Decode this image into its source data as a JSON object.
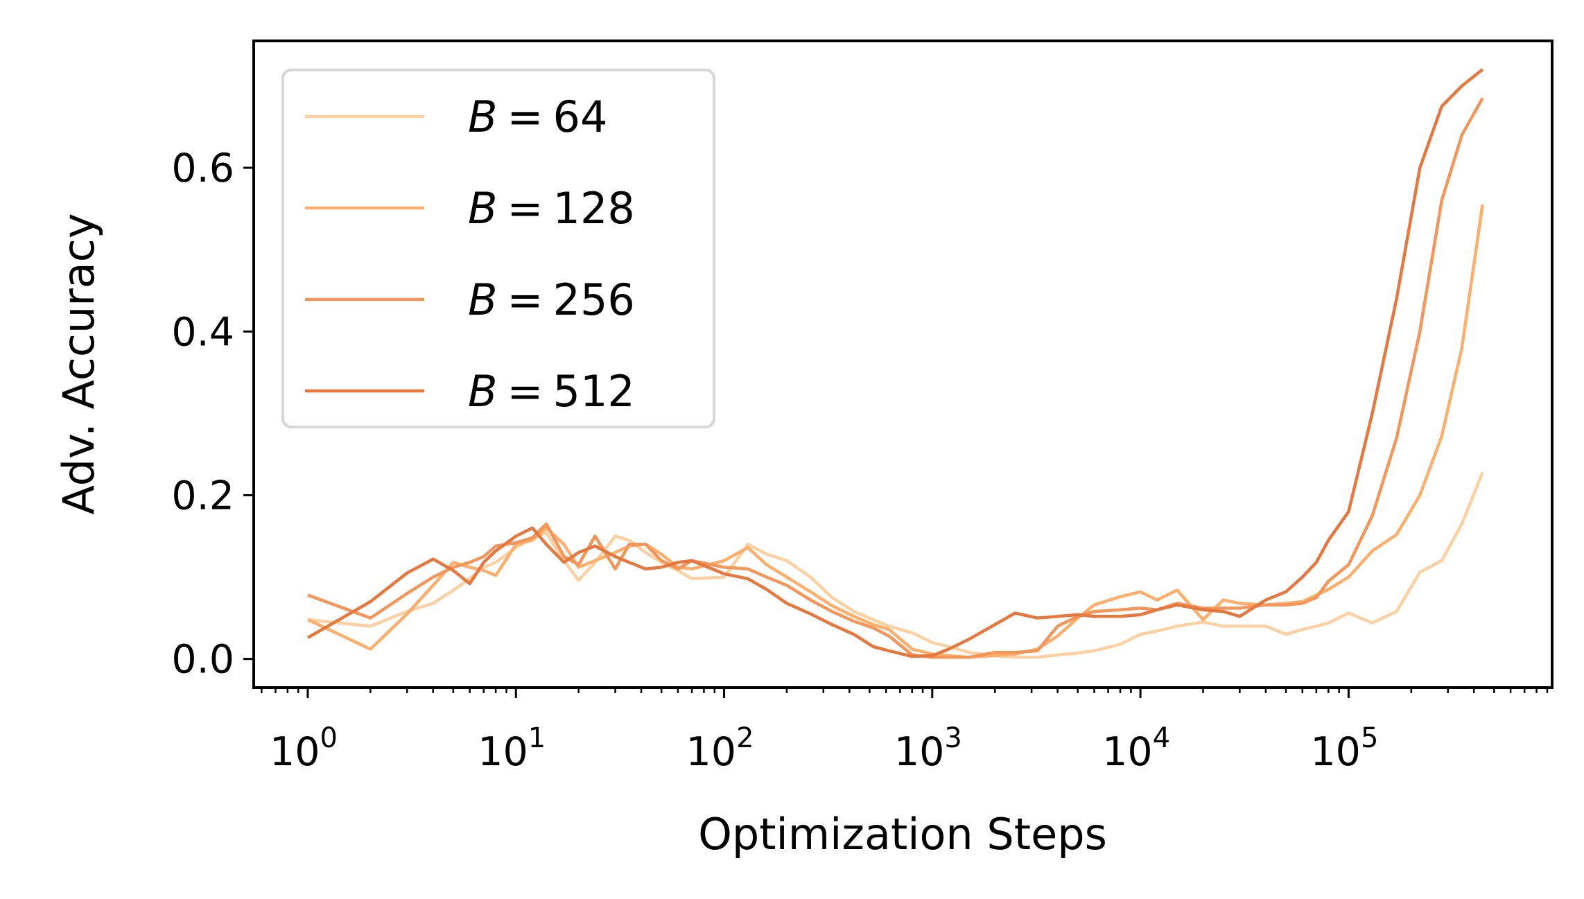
{
  "chart_data": {
    "type": "line",
    "title": "",
    "xlabel": "Optimization Steps",
    "ylabel": "Adv. Accuracy",
    "xscale": "log",
    "xlim": [
      0.55,
      950000
    ],
    "ylim": [
      -0.035,
      0.755
    ],
    "xticks": [
      {
        "base": "10",
        "exp": "0"
      },
      {
        "base": "10",
        "exp": "1"
      },
      {
        "base": "10",
        "exp": "2"
      },
      {
        "base": "10",
        "exp": "3"
      },
      {
        "base": "10",
        "exp": "4"
      },
      {
        "base": "10",
        "exp": "5"
      }
    ],
    "yticks": [
      "0.0",
      "0.2",
      "0.4",
      "0.6"
    ],
    "legend_position": "upper-left",
    "grid": false,
    "series": [
      {
        "name": "B = 64",
        "label_var": "B",
        "label_value": "64",
        "color": "#fdd0a2",
        "points": [
          [
            1,
            0.048
          ],
          [
            2,
            0.04
          ],
          [
            3,
            0.058
          ],
          [
            4,
            0.068
          ],
          [
            5,
            0.084
          ],
          [
            6,
            0.098
          ],
          [
            7,
            0.112
          ],
          [
            8,
            0.118
          ],
          [
            10,
            0.136
          ],
          [
            12,
            0.148
          ],
          [
            14,
            0.154
          ],
          [
            17,
            0.12
          ],
          [
            20,
            0.096
          ],
          [
            24,
            0.118
          ],
          [
            30,
            0.15
          ],
          [
            35,
            0.145
          ],
          [
            42,
            0.13
          ],
          [
            50,
            0.118
          ],
          [
            60,
            0.108
          ],
          [
            70,
            0.098
          ],
          [
            100,
            0.1
          ],
          [
            130,
            0.14
          ],
          [
            160,
            0.128
          ],
          [
            200,
            0.12
          ],
          [
            260,
            0.1
          ],
          [
            330,
            0.075
          ],
          [
            420,
            0.058
          ],
          [
            520,
            0.048
          ],
          [
            620,
            0.04
          ],
          [
            800,
            0.032
          ],
          [
            1000,
            0.02
          ],
          [
            1200,
            0.015
          ],
          [
            1500,
            0.008
          ],
          [
            2000,
            0.004
          ],
          [
            2500,
            0.002
          ],
          [
            3200,
            0.002
          ],
          [
            4000,
            0.005
          ],
          [
            5000,
            0.007
          ],
          [
            6000,
            0.01
          ],
          [
            8000,
            0.018
          ],
          [
            10000,
            0.03
          ],
          [
            12000,
            0.034
          ],
          [
            15000,
            0.04
          ],
          [
            20000,
            0.045
          ],
          [
            25000,
            0.04
          ],
          [
            30000,
            0.04
          ],
          [
            40000,
            0.04
          ],
          [
            50000,
            0.03
          ],
          [
            60000,
            0.036
          ],
          [
            70000,
            0.04
          ],
          [
            80000,
            0.044
          ],
          [
            100000,
            0.056
          ],
          [
            130000,
            0.044
          ],
          [
            170000,
            0.058
          ],
          [
            220000,
            0.106
          ],
          [
            280000,
            0.12
          ],
          [
            350000,
            0.165
          ],
          [
            440000,
            0.228
          ]
        ]
      },
      {
        "name": "B = 128",
        "label_var": "B",
        "label_value": "128",
        "color": "#fdae6b",
        "points": [
          [
            1,
            0.048
          ],
          [
            2,
            0.012
          ],
          [
            3,
            0.055
          ],
          [
            4,
            0.09
          ],
          [
            5,
            0.118
          ],
          [
            6,
            0.112
          ],
          [
            7,
            0.108
          ],
          [
            8,
            0.102
          ],
          [
            10,
            0.14
          ],
          [
            12,
            0.145
          ],
          [
            14,
            0.16
          ],
          [
            17,
            0.14
          ],
          [
            20,
            0.112
          ],
          [
            24,
            0.12
          ],
          [
            30,
            0.13
          ],
          [
            35,
            0.138
          ],
          [
            42,
            0.14
          ],
          [
            50,
            0.128
          ],
          [
            60,
            0.112
          ],
          [
            70,
            0.11
          ],
          [
            100,
            0.12
          ],
          [
            130,
            0.136
          ],
          [
            160,
            0.115
          ],
          [
            200,
            0.1
          ],
          [
            260,
            0.082
          ],
          [
            330,
            0.065
          ],
          [
            420,
            0.052
          ],
          [
            520,
            0.042
          ],
          [
            620,
            0.036
          ],
          [
            800,
            0.012
          ],
          [
            1000,
            0.006
          ],
          [
            1200,
            0.004
          ],
          [
            1500,
            0.002
          ],
          [
            2000,
            0.004
          ],
          [
            2500,
            0.006
          ],
          [
            3200,
            0.012
          ],
          [
            4000,
            0.028
          ],
          [
            5000,
            0.05
          ],
          [
            6000,
            0.066
          ],
          [
            8000,
            0.076
          ],
          [
            10000,
            0.082
          ],
          [
            12000,
            0.072
          ],
          [
            15000,
            0.084
          ],
          [
            20000,
            0.048
          ],
          [
            25000,
            0.072
          ],
          [
            30000,
            0.068
          ],
          [
            40000,
            0.066
          ],
          [
            50000,
            0.068
          ],
          [
            60000,
            0.07
          ],
          [
            70000,
            0.078
          ],
          [
            80000,
            0.085
          ],
          [
            100000,
            0.1
          ],
          [
            130000,
            0.132
          ],
          [
            170000,
            0.152
          ],
          [
            220000,
            0.2
          ],
          [
            280000,
            0.272
          ],
          [
            350000,
            0.38
          ],
          [
            440000,
            0.555
          ]
        ]
      },
      {
        "name": "B = 256",
        "label_var": "B",
        "label_value": "256",
        "color": "#f4955a",
        "points": [
          [
            1,
            0.078
          ],
          [
            2,
            0.05
          ],
          [
            3,
            0.08
          ],
          [
            4,
            0.1
          ],
          [
            5,
            0.112
          ],
          [
            6,
            0.118
          ],
          [
            7,
            0.125
          ],
          [
            8,
            0.138
          ],
          [
            10,
            0.142
          ],
          [
            12,
            0.148
          ],
          [
            14,
            0.165
          ],
          [
            17,
            0.125
          ],
          [
            20,
            0.115
          ],
          [
            24,
            0.15
          ],
          [
            30,
            0.11
          ],
          [
            35,
            0.14
          ],
          [
            42,
            0.14
          ],
          [
            50,
            0.12
          ],
          [
            60,
            0.11
          ],
          [
            70,
            0.12
          ],
          [
            100,
            0.112
          ],
          [
            130,
            0.11
          ],
          [
            160,
            0.1
          ],
          [
            200,
            0.09
          ],
          [
            260,
            0.072
          ],
          [
            330,
            0.058
          ],
          [
            420,
            0.046
          ],
          [
            520,
            0.038
          ],
          [
            620,
            0.028
          ],
          [
            800,
            0.005
          ],
          [
            1000,
            0.002
          ],
          [
            1200,
            0.002
          ],
          [
            1500,
            0.002
          ],
          [
            2000,
            0.008
          ],
          [
            2500,
            0.008
          ],
          [
            3200,
            0.01
          ],
          [
            4000,
            0.04
          ],
          [
            5000,
            0.052
          ],
          [
            6000,
            0.058
          ],
          [
            8000,
            0.06
          ],
          [
            10000,
            0.062
          ],
          [
            12000,
            0.06
          ],
          [
            15000,
            0.068
          ],
          [
            20000,
            0.062
          ],
          [
            25000,
            0.062
          ],
          [
            30000,
            0.062
          ],
          [
            40000,
            0.066
          ],
          [
            50000,
            0.066
          ],
          [
            60000,
            0.068
          ],
          [
            70000,
            0.075
          ],
          [
            80000,
            0.095
          ],
          [
            100000,
            0.115
          ],
          [
            130000,
            0.175
          ],
          [
            170000,
            0.27
          ],
          [
            220000,
            0.4
          ],
          [
            280000,
            0.56
          ],
          [
            350000,
            0.64
          ],
          [
            440000,
            0.685
          ]
        ]
      },
      {
        "name": "B = 512",
        "label_var": "B",
        "label_value": "512",
        "color": "#e6773e",
        "points": [
          [
            1,
            0.026
          ],
          [
            2,
            0.07
          ],
          [
            3,
            0.105
          ],
          [
            4,
            0.122
          ],
          [
            5,
            0.108
          ],
          [
            6,
            0.092
          ],
          [
            7,
            0.118
          ],
          [
            8,
            0.132
          ],
          [
            10,
            0.15
          ],
          [
            12,
            0.16
          ],
          [
            14,
            0.14
          ],
          [
            17,
            0.118
          ],
          [
            20,
            0.13
          ],
          [
            24,
            0.138
          ],
          [
            30,
            0.125
          ],
          [
            35,
            0.118
          ],
          [
            42,
            0.11
          ],
          [
            50,
            0.112
          ],
          [
            60,
            0.118
          ],
          [
            70,
            0.12
          ],
          [
            100,
            0.104
          ],
          [
            130,
            0.098
          ],
          [
            160,
            0.085
          ],
          [
            200,
            0.068
          ],
          [
            260,
            0.055
          ],
          [
            330,
            0.042
          ],
          [
            420,
            0.03
          ],
          [
            520,
            0.015
          ],
          [
            620,
            0.01
          ],
          [
            800,
            0.003
          ],
          [
            1000,
            0.004
          ],
          [
            1200,
            0.012
          ],
          [
            1500,
            0.024
          ],
          [
            2000,
            0.042
          ],
          [
            2500,
            0.056
          ],
          [
            3200,
            0.05
          ],
          [
            4000,
            0.052
          ],
          [
            5000,
            0.054
          ],
          [
            6000,
            0.052
          ],
          [
            8000,
            0.052
          ],
          [
            10000,
            0.054
          ],
          [
            12000,
            0.06
          ],
          [
            15000,
            0.066
          ],
          [
            20000,
            0.06
          ],
          [
            25000,
            0.058
          ],
          [
            30000,
            0.052
          ],
          [
            40000,
            0.072
          ],
          [
            50000,
            0.082
          ],
          [
            60000,
            0.1
          ],
          [
            70000,
            0.118
          ],
          [
            80000,
            0.145
          ],
          [
            100000,
            0.18
          ],
          [
            130000,
            0.3
          ],
          [
            170000,
            0.44
          ],
          [
            220000,
            0.6
          ],
          [
            280000,
            0.675
          ],
          [
            350000,
            0.7
          ],
          [
            440000,
            0.72
          ]
        ]
      }
    ]
  }
}
